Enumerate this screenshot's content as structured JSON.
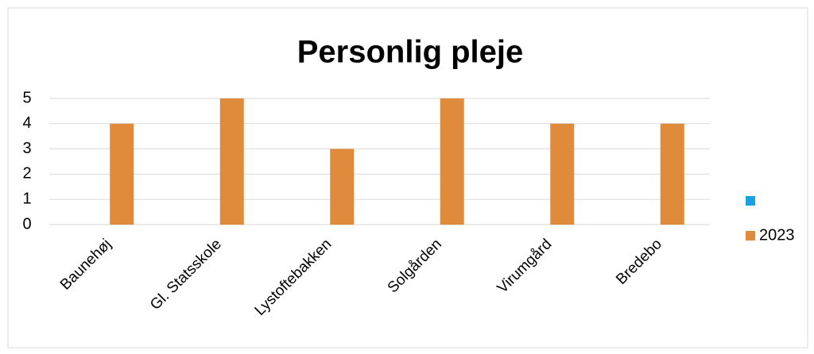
{
  "chart_data": {
    "type": "bar",
    "title": "Personlig pleje",
    "categories": [
      "Baunehøj",
      "Gl. Statsskole",
      "Lystoftebakken",
      "Solgården",
      "Virumgård",
      "Bredebo"
    ],
    "series": [
      {
        "color": "#1ba1e2",
        "values": [
          null,
          null,
          null,
          null,
          null,
          null
        ]
      },
      {
        "name": "2023",
        "color": "#e08a3c",
        "values": [
          4,
          5,
          3,
          5,
          4,
          4
        ]
      }
    ],
    "ylim": [
      0,
      5
    ],
    "yticks": [
      0,
      1,
      2,
      3,
      4,
      5
    ],
    "grid": true,
    "legend": "right"
  }
}
